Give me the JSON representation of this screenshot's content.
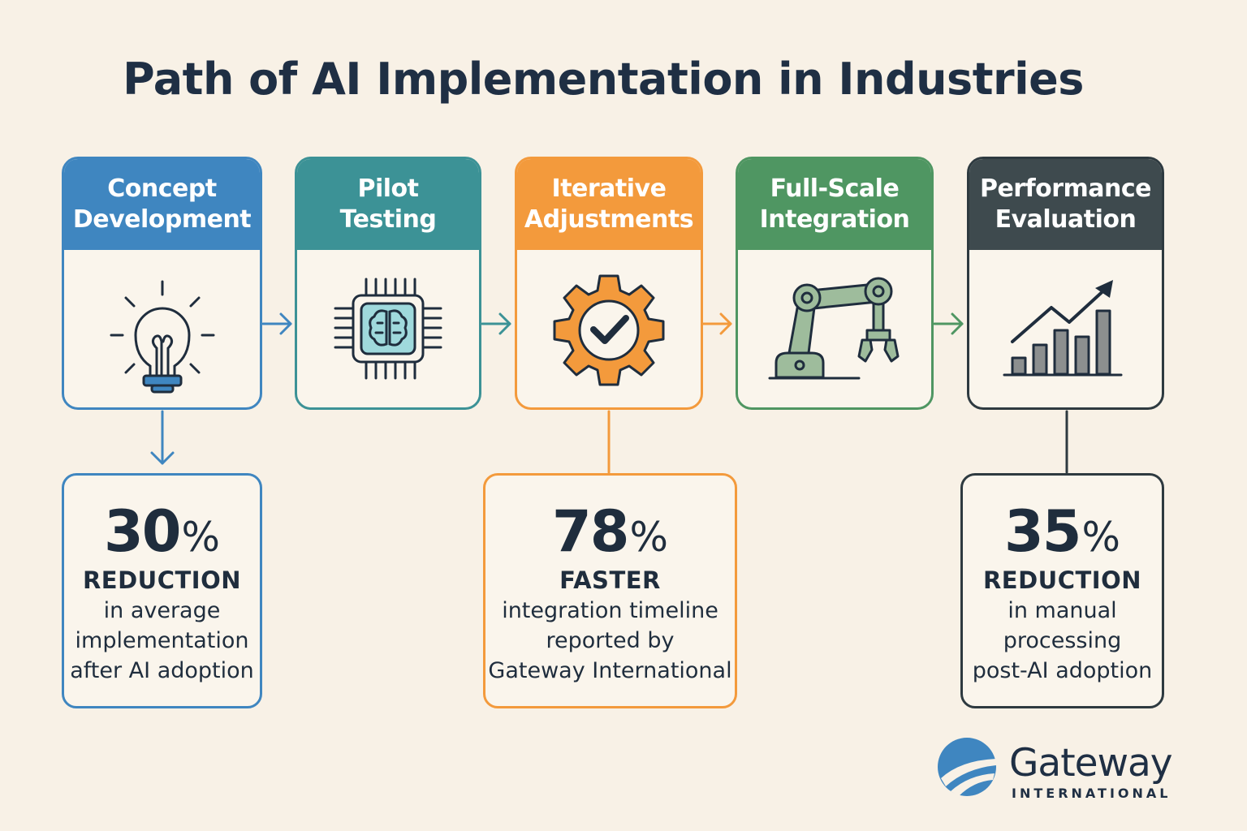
{
  "title": "Path of AI Implementation in Industries",
  "stages": [
    {
      "line1": "Concept",
      "line2": "Development",
      "icon": "lightbulb-icon",
      "color": "#3f86c0"
    },
    {
      "line1": "Pilot",
      "line2": "Testing",
      "icon": "ai-chip-icon",
      "color": "#3c9296"
    },
    {
      "line1": "Iterative",
      "line2": "Adjustments",
      "icon": "gear-check-icon",
      "color": "#f39a3c"
    },
    {
      "line1": "Full-Scale",
      "line2": "Integration",
      "icon": "robotic-arm-icon",
      "color": "#4f9662"
    },
    {
      "line1": "Performance",
      "line2": "Evaluation",
      "icon": "growth-chart-icon",
      "color": "#3e4a4e"
    }
  ],
  "stats": [
    {
      "value": "30",
      "unit": "%",
      "label": "REDUCTION",
      "lines": [
        "in average",
        "implementation",
        "after AI adoption"
      ]
    },
    {
      "value": "78",
      "unit": "%",
      "label": "FASTER",
      "lines": [
        "integration timeline",
        "reported by",
        "Gateway International"
      ]
    },
    {
      "value": "35",
      "unit": "%",
      "label": "REDUCTION",
      "lines": [
        "in manual",
        "processing",
        "post-AI adoption"
      ]
    }
  ],
  "logo": {
    "name": "Gateway",
    "sub": "INTERNATIONAL"
  }
}
